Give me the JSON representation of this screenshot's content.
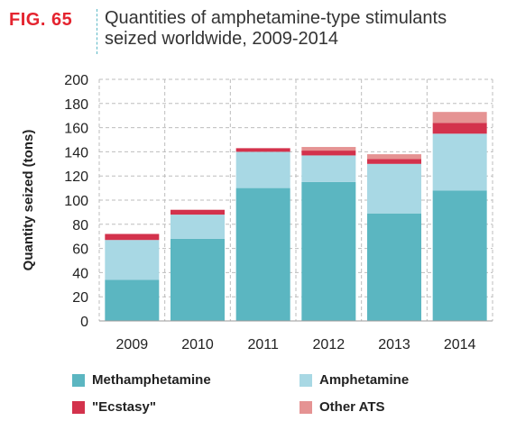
{
  "figure": {
    "label": "FIG. 65",
    "title": "Quantities of amphetamine-type stimulants seized worldwide, 2009-2014"
  },
  "chart_data": {
    "type": "bar",
    "stacked": true,
    "ylabel": "Quantity seized (tons)",
    "xlabel": "",
    "ylim": [
      0,
      200
    ],
    "yticks": [
      0,
      20,
      40,
      60,
      80,
      100,
      120,
      140,
      160,
      180,
      200
    ],
    "grid": true,
    "legend_position": "bottom",
    "categories": [
      "2009",
      "2010",
      "2011",
      "2012",
      "2013",
      "2014"
    ],
    "series": [
      {
        "name": "Methamphetamine",
        "color": "#5bb6c1",
        "values": [
          34,
          68,
          110,
          115,
          89,
          108
        ]
      },
      {
        "name": "Amphetamine",
        "color": "#a8d8e4",
        "values": [
          33,
          20,
          30,
          22,
          41,
          47
        ]
      },
      {
        "name": "\"Ecstasy\"",
        "color": "#d3324c",
        "values": [
          5,
          4,
          3,
          4,
          4,
          9
        ]
      },
      {
        "name": "Other ATS",
        "color": "#e59393",
        "values": [
          0,
          0,
          0,
          3,
          4,
          9
        ]
      }
    ]
  }
}
